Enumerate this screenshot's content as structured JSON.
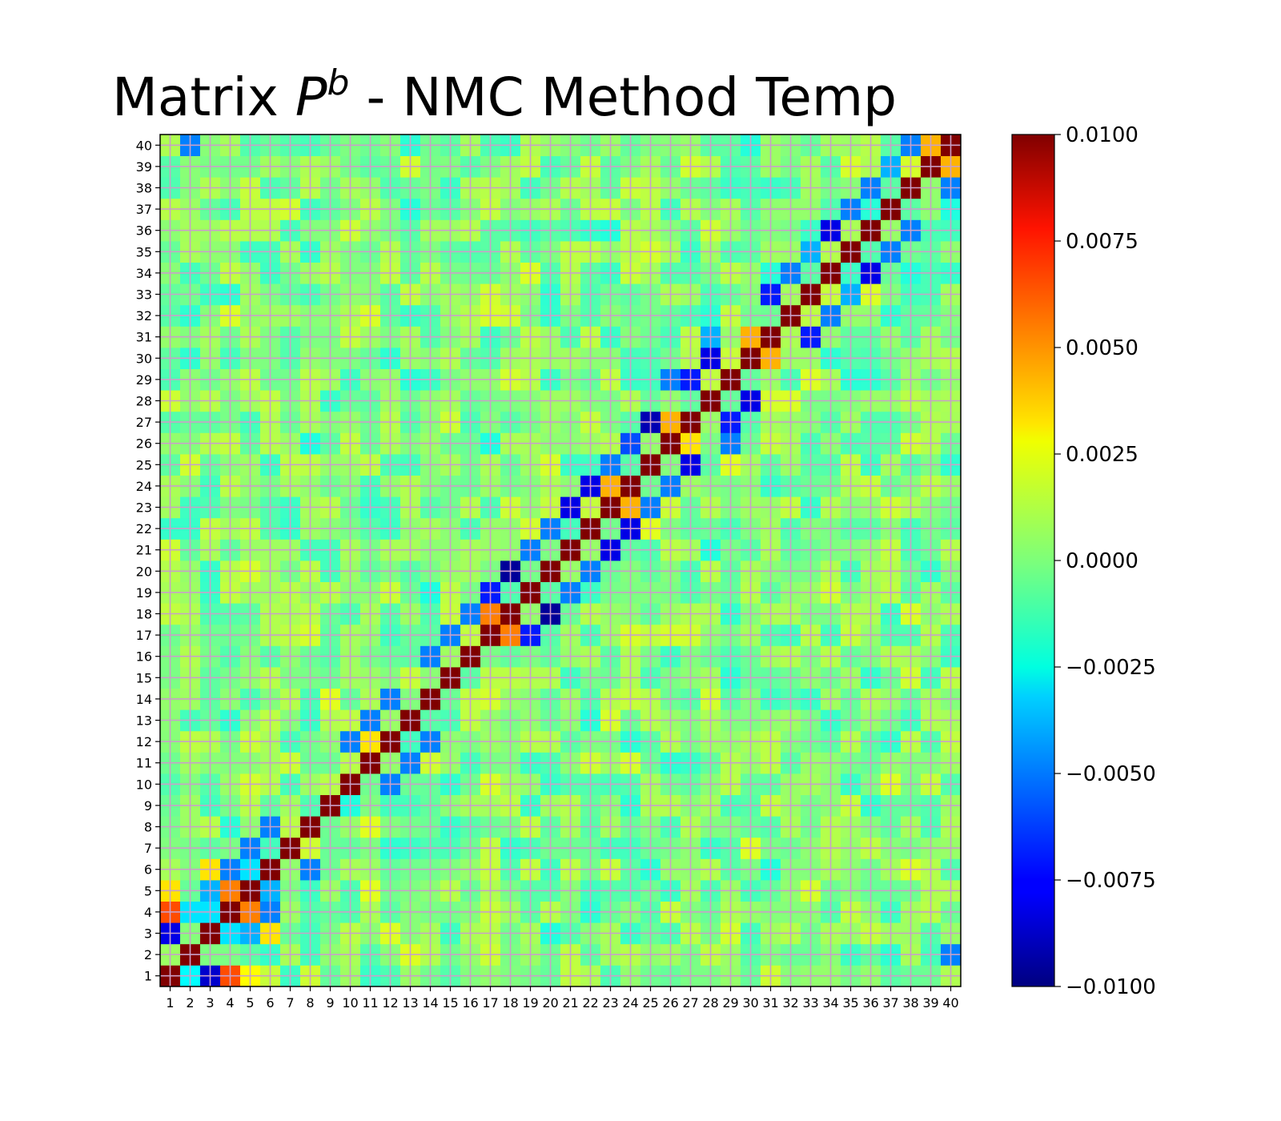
{
  "title": {
    "prefix": "Matrix ",
    "symbol": "P",
    "superscript": "b",
    "suffix": " - NMC Method Temp"
  },
  "chart_data": {
    "type": "heatmap",
    "title": "Matrix P^b - NMC Method Temp",
    "xlabel": "",
    "ylabel": "",
    "x_ticks": [
      "1",
      "2",
      "3",
      "4",
      "5",
      "6",
      "7",
      "8",
      "9",
      "10",
      "11",
      "12",
      "13",
      "14",
      "15",
      "16",
      "17",
      "18",
      "19",
      "20",
      "21",
      "22",
      "23",
      "24",
      "25",
      "26",
      "27",
      "28",
      "29",
      "30",
      "31",
      "32",
      "33",
      "34",
      "35",
      "36",
      "37",
      "38",
      "39",
      "40"
    ],
    "y_ticks": [
      "1",
      "2",
      "3",
      "4",
      "5",
      "6",
      "7",
      "8",
      "9",
      "10",
      "11",
      "12",
      "13",
      "14",
      "15",
      "16",
      "17",
      "18",
      "19",
      "20",
      "21",
      "22",
      "23",
      "24",
      "25",
      "26",
      "27",
      "28",
      "29",
      "30",
      "31",
      "32",
      "33",
      "34",
      "35",
      "36",
      "37",
      "38",
      "39",
      "40"
    ],
    "colormap": "jet",
    "vmin": -0.01,
    "vmax": 0.01,
    "grid": true,
    "grid_color": "#c8a0c8",
    "colorbar_ticks": [
      "0.0100",
      "0.0075",
      "0.0050",
      "0.0025",
      "0.0000",
      "−0.0025",
      "−0.0050",
      "−0.0075",
      "−0.0100"
    ],
    "diagonal_value": 0.01,
    "notable_cells": [
      {
        "row": 1,
        "col": 2,
        "value": -0.0025
      },
      {
        "row": 1,
        "col": 3,
        "value": -0.0085
      },
      {
        "row": 1,
        "col": 4,
        "value": 0.006
      },
      {
        "row": 1,
        "col": 5,
        "value": 0.0025
      },
      {
        "row": 2,
        "col": 40,
        "value": -0.005
      },
      {
        "row": 3,
        "col": 1,
        "value": -0.008
      },
      {
        "row": 3,
        "col": 4,
        "value": -0.003
      },
      {
        "row": 3,
        "col": 5,
        "value": -0.004
      },
      {
        "row": 3,
        "col": 6,
        "value": 0.003
      },
      {
        "row": 4,
        "col": 1,
        "value": 0.006
      },
      {
        "row": 4,
        "col": 2,
        "value": -0.003
      },
      {
        "row": 4,
        "col": 3,
        "value": -0.003
      },
      {
        "row": 4,
        "col": 5,
        "value": 0.005
      },
      {
        "row": 4,
        "col": 6,
        "value": -0.005
      },
      {
        "row": 5,
        "col": 1,
        "value": 0.003
      },
      {
        "row": 5,
        "col": 3,
        "value": -0.004
      },
      {
        "row": 5,
        "col": 4,
        "value": 0.005
      },
      {
        "row": 5,
        "col": 6,
        "value": -0.004
      },
      {
        "row": 6,
        "col": 3,
        "value": 0.003
      },
      {
        "row": 6,
        "col": 4,
        "value": -0.005
      },
      {
        "row": 6,
        "col": 5,
        "value": -0.003
      },
      {
        "row": 6,
        "col": 8,
        "value": -0.005
      },
      {
        "row": 7,
        "col": 5,
        "value": -0.005
      },
      {
        "row": 8,
        "col": 6,
        "value": -0.005
      },
      {
        "row": 10,
        "col": 12,
        "value": -0.005
      },
      {
        "row": 11,
        "col": 13,
        "value": -0.005
      },
      {
        "row": 12,
        "col": 10,
        "value": -0.005
      },
      {
        "row": 12,
        "col": 11,
        "value": 0.003
      },
      {
        "row": 12,
        "col": 14,
        "value": -0.005
      },
      {
        "row": 13,
        "col": 11,
        "value": -0.005
      },
      {
        "row": 14,
        "col": 12,
        "value": -0.005
      },
      {
        "row": 16,
        "col": 14,
        "value": -0.005
      },
      {
        "row": 17,
        "col": 15,
        "value": -0.005
      },
      {
        "row": 17,
        "col": 18,
        "value": 0.005
      },
      {
        "row": 17,
        "col": 19,
        "value": -0.007
      },
      {
        "row": 18,
        "col": 16,
        "value": -0.005
      },
      {
        "row": 18,
        "col": 17,
        "value": 0.005
      },
      {
        "row": 18,
        "col": 20,
        "value": -0.0095
      },
      {
        "row": 19,
        "col": 17,
        "value": -0.007
      },
      {
        "row": 19,
        "col": 21,
        "value": -0.005
      },
      {
        "row": 20,
        "col": 18,
        "value": -0.0095
      },
      {
        "row": 20,
        "col": 22,
        "value": -0.005
      },
      {
        "row": 21,
        "col": 19,
        "value": -0.005
      },
      {
        "row": 21,
        "col": 23,
        "value": -0.008
      },
      {
        "row": 22,
        "col": 20,
        "value": -0.005
      },
      {
        "row": 22,
        "col": 24,
        "value": -0.008
      },
      {
        "row": 23,
        "col": 21,
        "value": -0.008
      },
      {
        "row": 23,
        "col": 24,
        "value": 0.004
      },
      {
        "row": 23,
        "col": 25,
        "value": -0.005
      },
      {
        "row": 24,
        "col": 22,
        "value": -0.008
      },
      {
        "row": 24,
        "col": 23,
        "value": 0.004
      },
      {
        "row": 24,
        "col": 26,
        "value": -0.005
      },
      {
        "row": 25,
        "col": 23,
        "value": -0.005
      },
      {
        "row": 25,
        "col": 27,
        "value": -0.008
      },
      {
        "row": 26,
        "col": 24,
        "value": -0.006
      },
      {
        "row": 26,
        "col": 27,
        "value": 0.003
      },
      {
        "row": 26,
        "col": 29,
        "value": -0.005
      },
      {
        "row": 27,
        "col": 25,
        "value": -0.009
      },
      {
        "row": 27,
        "col": 26,
        "value": 0.004
      },
      {
        "row": 27,
        "col": 29,
        "value": -0.007
      },
      {
        "row": 28,
        "col": 30,
        "value": -0.008
      },
      {
        "row": 29,
        "col": 26,
        "value": -0.005
      },
      {
        "row": 29,
        "col": 27,
        "value": -0.007
      },
      {
        "row": 30,
        "col": 28,
        "value": -0.008
      },
      {
        "row": 30,
        "col": 31,
        "value": 0.004
      },
      {
        "row": 31,
        "col": 30,
        "value": 0.004
      },
      {
        "row": 31,
        "col": 28,
        "value": -0.004
      },
      {
        "row": 31,
        "col": 33,
        "value": -0.007
      },
      {
        "row": 32,
        "col": 34,
        "value": -0.005
      },
      {
        "row": 33,
        "col": 31,
        "value": -0.007
      },
      {
        "row": 33,
        "col": 35,
        "value": -0.004
      },
      {
        "row": 34,
        "col": 32,
        "value": -0.005
      },
      {
        "row": 34,
        "col": 36,
        "value": -0.008
      },
      {
        "row": 35,
        "col": 33,
        "value": -0.004
      },
      {
        "row": 35,
        "col": 37,
        "value": -0.005
      },
      {
        "row": 36,
        "col": 34,
        "value": -0.008
      },
      {
        "row": 36,
        "col": 38,
        "value": -0.005
      },
      {
        "row": 37,
        "col": 35,
        "value": -0.005
      },
      {
        "row": 38,
        "col": 36,
        "value": -0.005
      },
      {
        "row": 38,
        "col": 40,
        "value": -0.005
      },
      {
        "row": 39,
        "col": 37,
        "value": -0.004
      },
      {
        "row": 39,
        "col": 40,
        "value": 0.004
      },
      {
        "row": 40,
        "col": 2,
        "value": -0.005
      },
      {
        "row": 40,
        "col": 38,
        "value": -0.005
      },
      {
        "row": 40,
        "col": 39,
        "value": 0.004
      }
    ]
  }
}
